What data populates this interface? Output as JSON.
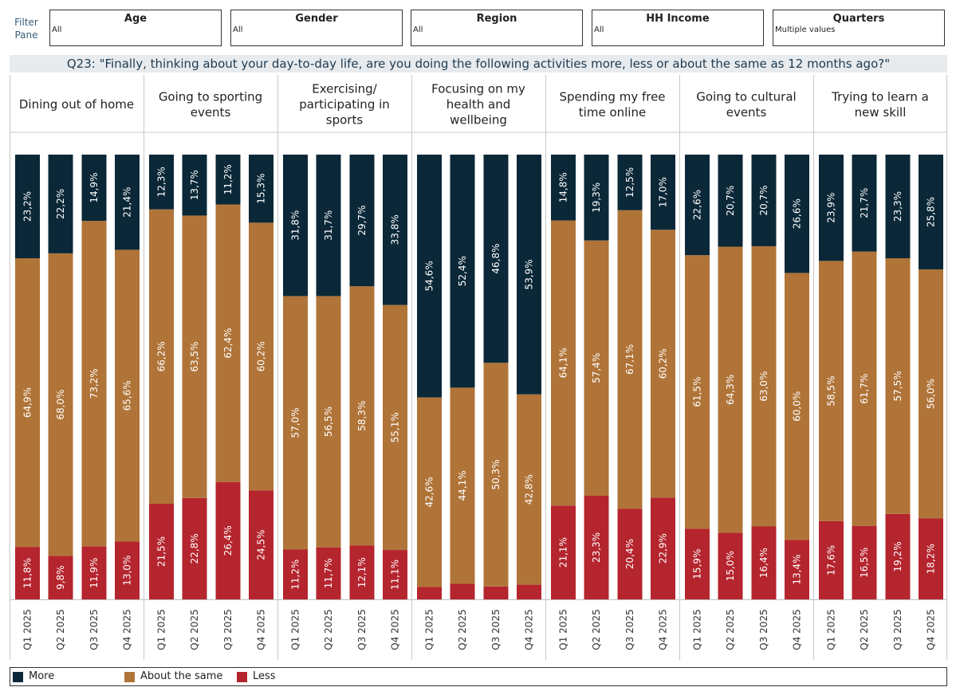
{
  "filter_pane": {
    "label": "Filter Pane",
    "filters": [
      {
        "title": "Age",
        "value": "All"
      },
      {
        "title": "Gender",
        "value": "All"
      },
      {
        "title": "Region",
        "value": "All"
      },
      {
        "title": "HH Income",
        "value": "All"
      },
      {
        "title": "Quarters",
        "value": "Multiple values"
      }
    ]
  },
  "question": "Q23: \"Finally, thinking about your day-to-day life, are you doing the following activities more, less or about the same as 12 months ago?\"",
  "colors": {
    "more": "#0b2838",
    "same": "#b07438",
    "less": "#b5252e",
    "label": "#ffffff"
  },
  "legend": [
    {
      "key": "more",
      "label": "More"
    },
    {
      "key": "same",
      "label": "About the same"
    },
    {
      "key": "less",
      "label": "Less"
    }
  ],
  "chart_data": {
    "type": "bar",
    "stacked": true,
    "normalized": true,
    "value_format": "one decimal with comma and % sign",
    "quarters": [
      "Q1 2025",
      "Q2 2025",
      "Q3 2025",
      "Q4 2025"
    ],
    "series_order": [
      "less",
      "same",
      "more"
    ],
    "panels": [
      {
        "title_lines": [
          "Dining out of home"
        ],
        "more": [
          23.2,
          22.2,
          14.9,
          21.4
        ],
        "same": [
          64.9,
          68.0,
          73.2,
          65.6
        ],
        "less": [
          11.8,
          9.8,
          11.9,
          13.0
        ]
      },
      {
        "title_lines": [
          "Going to sporting",
          "events"
        ],
        "more": [
          12.3,
          13.7,
          11.2,
          15.3
        ],
        "same": [
          66.2,
          63.5,
          62.4,
          60.2
        ],
        "less": [
          21.5,
          22.8,
          26.4,
          24.5
        ]
      },
      {
        "title_lines": [
          "Exercising/",
          "participating in",
          "sports"
        ],
        "more": [
          31.8,
          31.7,
          29.7,
          33.8
        ],
        "same": [
          57.0,
          56.5,
          58.3,
          55.1
        ],
        "less": [
          11.2,
          11.7,
          12.1,
          11.1
        ]
      },
      {
        "title_lines": [
          "Focusing on my",
          "health and",
          "wellbeing"
        ],
        "more": [
          54.6,
          52.4,
          46.8,
          53.9
        ],
        "same": [
          42.6,
          44.1,
          50.3,
          42.8
        ],
        "less": [
          2.8,
          3.5,
          2.9,
          3.3
        ],
        "less_labels_hidden": true
      },
      {
        "title_lines": [
          "Spending my free",
          "time online"
        ],
        "more": [
          14.8,
          19.3,
          12.5,
          17.0
        ],
        "same": [
          64.1,
          57.4,
          67.1,
          60.2
        ],
        "less": [
          21.1,
          23.3,
          20.4,
          22.9
        ]
      },
      {
        "title_lines": [
          "Going to cultural",
          "events"
        ],
        "more": [
          22.6,
          20.7,
          20.7,
          26.6
        ],
        "same": [
          61.5,
          64.3,
          63.0,
          60.0
        ],
        "less": [
          15.9,
          15.0,
          16.4,
          13.4
        ]
      },
      {
        "title_lines": [
          "Trying to learn a",
          "new skill"
        ],
        "more": [
          23.9,
          21.7,
          23.3,
          25.8
        ],
        "same": [
          58.5,
          61.7,
          57.5,
          56.0
        ],
        "less": [
          17.6,
          16.5,
          19.2,
          18.2
        ]
      }
    ]
  }
}
